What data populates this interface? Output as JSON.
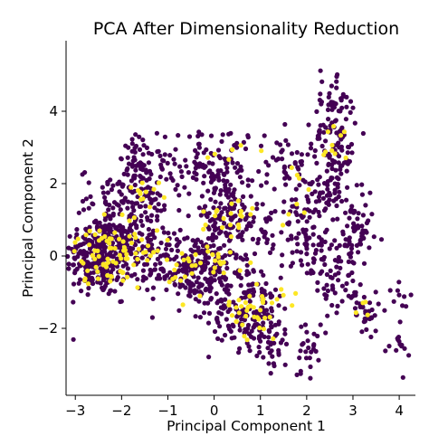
{
  "chart_data": {
    "type": "scatter",
    "title": "PCA After Dimensionality Reduction",
    "xlabel": "Principal Component 1",
    "ylabel": "Principal Component 2",
    "xlim": [
      -3.2,
      4.35
    ],
    "ylim": [
      -3.85,
      5.95
    ],
    "xticks": [
      -3,
      -2,
      -1,
      0,
      1,
      2,
      3,
      4
    ],
    "xtick_labels": [
      "−3",
      "−2",
      "−1",
      "0",
      "1",
      "2",
      "3",
      "4"
    ],
    "yticks": [
      -2,
      0,
      2,
      4
    ],
    "ytick_labels": [
      "−2",
      "0",
      "2",
      "4"
    ],
    "grid": false,
    "legend": "none",
    "colors": {
      "class_0": "#440154",
      "class_1": "#fde725"
    },
    "clusters_class_0": [
      {
        "cx": -2.5,
        "cy": 0.0,
        "sx": 0.35,
        "sy": 0.55,
        "n": 260
      },
      {
        "cx": -1.7,
        "cy": 0.6,
        "sx": 0.4,
        "sy": 0.8,
        "n": 170
      },
      {
        "cx": -1.6,
        "cy": 2.3,
        "sx": 0.25,
        "sy": 0.5,
        "n": 80
      },
      {
        "cx": -2.3,
        "cy": 1.6,
        "sx": 0.3,
        "sy": 0.4,
        "n": 40
      },
      {
        "cx": -0.6,
        "cy": 2.5,
        "sx": 0.35,
        "sy": 0.4,
        "n": 50
      },
      {
        "cx": 0.3,
        "cy": 2.6,
        "sx": 0.3,
        "sy": 0.5,
        "n": 60
      },
      {
        "cx": 0.2,
        "cy": 1.0,
        "sx": 0.4,
        "sy": 0.6,
        "n": 130
      },
      {
        "cx": -0.4,
        "cy": -0.4,
        "sx": 0.5,
        "sy": 0.5,
        "n": 240
      },
      {
        "cx": 0.8,
        "cy": -1.6,
        "sx": 0.45,
        "sy": 0.5,
        "n": 170
      },
      {
        "cx": 1.1,
        "cy": 0.6,
        "sx": 0.3,
        "sy": 0.5,
        "n": 40
      },
      {
        "cx": 1.6,
        "cy": 2.6,
        "sx": 0.25,
        "sy": 0.45,
        "n": 40
      },
      {
        "cx": 1.9,
        "cy": 1.2,
        "sx": 0.25,
        "sy": 0.6,
        "n": 40
      },
      {
        "cx": 2.15,
        "cy": 0.3,
        "sx": 0.25,
        "sy": 0.5,
        "n": 50
      },
      {
        "cx": 2.6,
        "cy": 3.2,
        "sx": 0.25,
        "sy": 0.7,
        "n": 100
      },
      {
        "cx": 2.5,
        "cy": 1.8,
        "sx": 0.3,
        "sy": 0.5,
        "n": 60
      },
      {
        "cx": 3.1,
        "cy": 0.5,
        "sx": 0.18,
        "sy": 0.5,
        "n": 55
      },
      {
        "cx": 2.7,
        "cy": -0.8,
        "sx": 0.25,
        "sy": 0.5,
        "n": 50
      },
      {
        "cx": 3.3,
        "cy": -1.5,
        "sx": 0.15,
        "sy": 0.3,
        "n": 30
      },
      {
        "cx": 2.0,
        "cy": -2.6,
        "sx": 0.12,
        "sy": 0.4,
        "n": 25
      },
      {
        "cx": 1.3,
        "cy": -2.6,
        "sx": 0.15,
        "sy": 0.3,
        "n": 20
      },
      {
        "cx": 4.0,
        "cy": -2.5,
        "sx": 0.1,
        "sy": 0.5,
        "n": 15
      },
      {
        "cx": 4.0,
        "cy": -0.9,
        "sx": 0.1,
        "sy": 0.2,
        "n": 8
      },
      {
        "cx": 2.6,
        "cy": 4.5,
        "sx": 0.2,
        "sy": 0.4,
        "n": 20
      }
    ],
    "clusters_class_1": [
      {
        "cx": -2.4,
        "cy": 0.0,
        "sx": 0.3,
        "sy": 0.4,
        "n": 60
      },
      {
        "cx": -1.7,
        "cy": 0.3,
        "sx": 0.3,
        "sy": 0.5,
        "n": 25
      },
      {
        "cx": -1.4,
        "cy": 1.7,
        "sx": 0.2,
        "sy": 0.3,
        "n": 12
      },
      {
        "cx": 0.2,
        "cy": 1.0,
        "sx": 0.35,
        "sy": 0.4,
        "n": 20
      },
      {
        "cx": -0.2,
        "cy": -0.3,
        "sx": 0.4,
        "sy": 0.4,
        "n": 35
      },
      {
        "cx": 0.9,
        "cy": -1.5,
        "sx": 0.3,
        "sy": 0.4,
        "n": 40
      },
      {
        "cx": 2.6,
        "cy": 3.2,
        "sx": 0.15,
        "sy": 0.4,
        "n": 10
      },
      {
        "cx": 1.8,
        "cy": 1.6,
        "sx": 0.2,
        "sy": 0.5,
        "n": 8
      },
      {
        "cx": 3.3,
        "cy": -1.4,
        "sx": 0.1,
        "sy": 0.2,
        "n": 4
      },
      {
        "cx": 0.5,
        "cy": 2.9,
        "sx": 0.4,
        "sy": 0.5,
        "n": 6
      }
    ]
  }
}
